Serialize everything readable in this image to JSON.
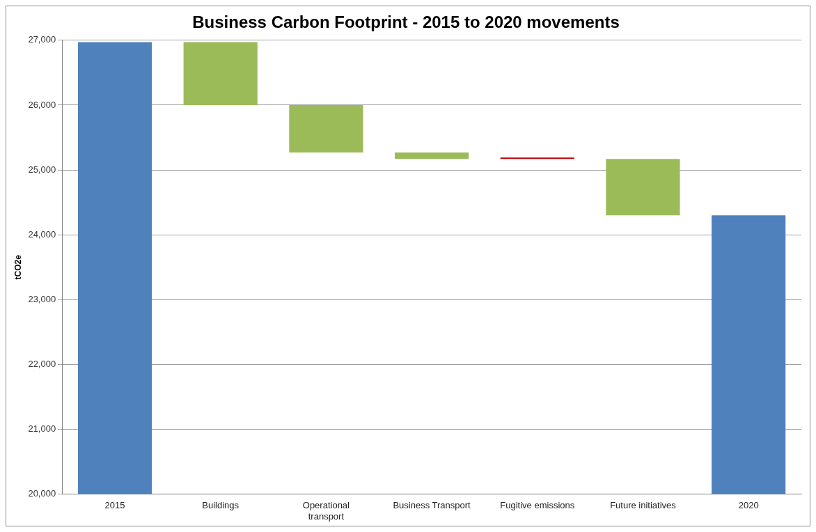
{
  "chart_data": {
    "type": "bar",
    "title": "Business Carbon Footprint - 2015 to 2020 movements",
    "ylabel": "tCO2e",
    "categories": [
      "2015",
      "Buildings",
      "Operational transport",
      "Business Transport",
      "Fugitive emissions",
      "Future initiatives",
      "2020"
    ],
    "values": [
      26970,
      -970,
      -730,
      -100,
      10,
      -870,
      24300
    ],
    "base": [
      null,
      26970,
      26000,
      25270,
      25170,
      25170,
      null
    ],
    "colors": [
      "#4f81bd",
      "#9bbb59",
      "#9bbb59",
      "#9bbb59",
      "#c00000",
      "#9bbb59",
      "#4f81bd"
    ],
    "ylim": [
      20000,
      27000
    ],
    "yticks": [
      {
        "value": 20000,
        "label": "20,000"
      },
      {
        "value": 21000,
        "label": "21,000"
      },
      {
        "value": 22000,
        "label": "22,000"
      },
      {
        "value": 23000,
        "label": "23,000"
      },
      {
        "value": 24000,
        "label": "24,000"
      },
      {
        "value": 25000,
        "label": "25,000"
      },
      {
        "value": 26000,
        "label": "26,000"
      },
      {
        "value": 27000,
        "label": "27,000"
      }
    ],
    "grid": "y",
    "legend": false
  }
}
